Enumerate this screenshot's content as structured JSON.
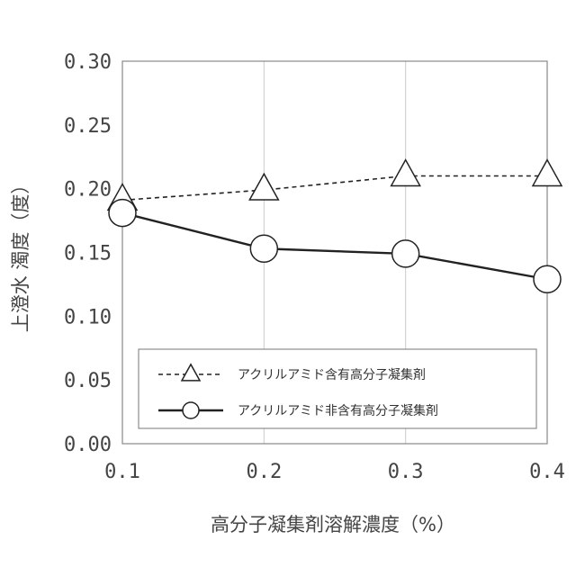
{
  "chart_data": {
    "type": "line",
    "xlabel": "高分子凝集剤溶解濃度（%）",
    "ylabel": "上澄水 濁度（度）",
    "x": [
      0.1,
      0.2,
      0.3,
      0.4
    ],
    "xlim": [
      0.1,
      0.4
    ],
    "x_ticks": [
      "0.1",
      "0.2",
      "0.3",
      "0.4"
    ],
    "ylim": [
      0,
      0.3
    ],
    "y_ticks": [
      "0.00",
      "0.05",
      "0.10",
      "0.15",
      "0.20",
      "0.25",
      "0.30"
    ],
    "grid": "vertical",
    "legend_position": "lower-right",
    "series": [
      {
        "name": "アクリルアミド含有高分子凝集剤",
        "values": [
          0.191,
          0.199,
          0.21,
          0.21
        ],
        "line_style": "dashed",
        "marker": "triangle",
        "color": "#222222"
      },
      {
        "name": "アクリルアミド非含有高分子凝集剤",
        "values": [
          0.181,
          0.153,
          0.149,
          0.129
        ],
        "line_style": "solid",
        "marker": "circle",
        "color": "#222222"
      }
    ]
  }
}
